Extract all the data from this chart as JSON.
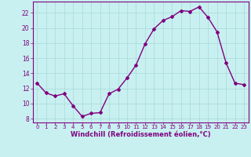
{
  "x": [
    0,
    1,
    2,
    3,
    4,
    5,
    6,
    7,
    8,
    9,
    10,
    11,
    12,
    13,
    14,
    15,
    16,
    17,
    18,
    19,
    20,
    21,
    22,
    23
  ],
  "y": [
    12.7,
    11.4,
    11.0,
    11.3,
    9.7,
    8.3,
    8.7,
    8.8,
    11.3,
    11.9,
    13.4,
    15.1,
    17.9,
    19.9,
    21.0,
    21.5,
    22.3,
    22.2,
    22.8,
    21.4,
    19.5,
    15.4,
    12.7,
    12.5
  ],
  "line_color": "#800080",
  "marker": "D",
  "marker_size": 2,
  "bg_color": "#c8f0f0",
  "grid_color": "#a8d8d8",
  "xlabel": "Windchill (Refroidissement éolien,°C)",
  "xlabel_color": "#800080",
  "tick_color": "#800080",
  "ylim": [
    7.5,
    23.5
  ],
  "xlim": [
    -0.5,
    23.5
  ],
  "yticks": [
    8,
    10,
    12,
    14,
    16,
    18,
    20,
    22
  ],
  "xticks": [
    0,
    1,
    2,
    3,
    4,
    5,
    6,
    7,
    8,
    9,
    10,
    11,
    12,
    13,
    14,
    15,
    16,
    17,
    18,
    19,
    20,
    21,
    22,
    23
  ],
  "spine_color": "#800080",
  "linewidth": 1.0,
  "tick_fontsize": 5.0,
  "ytick_fontsize": 5.5,
  "xlabel_fontsize": 6.0
}
